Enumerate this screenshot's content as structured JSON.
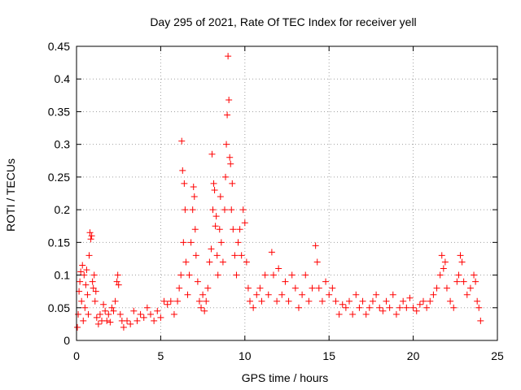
{
  "chart_data": {
    "type": "scatter",
    "title": "Day 295 of 2021, Rate Of TEC Index for receiver yell",
    "xlabel": "GPS time / hours",
    "ylabel": "ROTI / TECUs",
    "xlim": [
      0,
      25
    ],
    "ylim": [
      0,
      0.45
    ],
    "xticks": [
      0,
      5,
      10,
      15,
      20,
      25
    ],
    "xtick_labels": [
      "0",
      "5",
      "10",
      "15",
      "20",
      "25"
    ],
    "yticks": [
      0,
      0.05,
      0.1,
      0.15,
      0.2,
      0.25,
      0.3,
      0.35,
      0.4,
      0.45
    ],
    "ytick_labels": [
      "0",
      "0.05",
      "0.1",
      "0.15",
      "0.2",
      "0.25",
      "0.3",
      "0.35",
      "0.4",
      "0.45"
    ],
    "grid": true,
    "marker": "+",
    "color": "#ff0000",
    "points": [
      [
        0.05,
        0.02
      ],
      [
        0.1,
        0.04
      ],
      [
        0.15,
        0.075
      ],
      [
        0.2,
        0.09
      ],
      [
        0.25,
        0.105
      ],
      [
        0.3,
        0.06
      ],
      [
        0.35,
        0.115
      ],
      [
        0.4,
        0.03
      ],
      [
        0.45,
        0.1
      ],
      [
        0.5,
        0.05
      ],
      [
        0.55,
        0.085
      ],
      [
        0.6,
        0.108
      ],
      [
        0.65,
        0.07
      ],
      [
        0.7,
        0.04
      ],
      [
        0.75,
        0.13
      ],
      [
        0.8,
        0.165
      ],
      [
        0.85,
        0.155
      ],
      [
        0.9,
        0.16
      ],
      [
        0.95,
        0.09
      ],
      [
        1.0,
        0.08
      ],
      [
        1.05,
        0.1
      ],
      [
        1.1,
        0.06
      ],
      [
        1.15,
        0.075
      ],
      [
        1.2,
        0.035
      ],
      [
        1.3,
        0.025
      ],
      [
        1.4,
        0.04
      ],
      [
        1.5,
        0.03
      ],
      [
        1.6,
        0.055
      ],
      [
        1.7,
        0.045
      ],
      [
        1.8,
        0.03
      ],
      [
        1.9,
        0.04
      ],
      [
        2.0,
        0.028
      ],
      [
        2.1,
        0.05
      ],
      [
        2.2,
        0.045
      ],
      [
        2.3,
        0.06
      ],
      [
        2.4,
        0.09
      ],
      [
        2.45,
        0.1
      ],
      [
        2.5,
        0.085
      ],
      [
        2.6,
        0.04
      ],
      [
        2.7,
        0.03
      ],
      [
        2.8,
        0.02
      ],
      [
        3.0,
        0.03
      ],
      [
        3.2,
        0.025
      ],
      [
        3.4,
        0.045
      ],
      [
        3.6,
        0.03
      ],
      [
        3.8,
        0.04
      ],
      [
        4.0,
        0.035
      ],
      [
        4.2,
        0.05
      ],
      [
        4.4,
        0.04
      ],
      [
        4.6,
        0.03
      ],
      [
        4.8,
        0.045
      ],
      [
        5.0,
        0.035
      ],
      [
        5.2,
        0.06
      ],
      [
        5.4,
        0.055
      ],
      [
        5.6,
        0.06
      ],
      [
        5.8,
        0.04
      ],
      [
        6.0,
        0.06
      ],
      [
        6.1,
        0.08
      ],
      [
        6.2,
        0.1
      ],
      [
        6.25,
        0.305
      ],
      [
        6.3,
        0.26
      ],
      [
        6.35,
        0.15
      ],
      [
        6.4,
        0.24
      ],
      [
        6.45,
        0.2
      ],
      [
        6.5,
        0.12
      ],
      [
        6.6,
        0.07
      ],
      [
        6.7,
        0.1
      ],
      [
        6.8,
        0.15
      ],
      [
        6.9,
        0.2
      ],
      [
        6.95,
        0.235
      ],
      [
        7.0,
        0.22
      ],
      [
        7.05,
        0.17
      ],
      [
        7.1,
        0.13
      ],
      [
        7.2,
        0.09
      ],
      [
        7.3,
        0.06
      ],
      [
        7.4,
        0.05
      ],
      [
        7.5,
        0.07
      ],
      [
        7.6,
        0.045
      ],
      [
        7.7,
        0.06
      ],
      [
        7.8,
        0.08
      ],
      [
        7.9,
        0.12
      ],
      [
        8.0,
        0.14
      ],
      [
        8.05,
        0.285
      ],
      [
        8.1,
        0.2
      ],
      [
        8.15,
        0.24
      ],
      [
        8.2,
        0.23
      ],
      [
        8.25,
        0.175
      ],
      [
        8.3,
        0.19
      ],
      [
        8.35,
        0.13
      ],
      [
        8.4,
        0.1
      ],
      [
        8.5,
        0.17
      ],
      [
        8.55,
        0.22
      ],
      [
        8.6,
        0.15
      ],
      [
        8.7,
        0.12
      ],
      [
        8.8,
        0.2
      ],
      [
        8.85,
        0.25
      ],
      [
        8.9,
        0.3
      ],
      [
        8.95,
        0.345
      ],
      [
        9.0,
        0.435
      ],
      [
        9.05,
        0.368
      ],
      [
        9.1,
        0.28
      ],
      [
        9.15,
        0.27
      ],
      [
        9.2,
        0.2
      ],
      [
        9.25,
        0.24
      ],
      [
        9.3,
        0.17
      ],
      [
        9.4,
        0.13
      ],
      [
        9.5,
        0.1
      ],
      [
        9.6,
        0.15
      ],
      [
        9.7,
        0.17
      ],
      [
        9.8,
        0.13
      ],
      [
        9.9,
        0.2
      ],
      [
        10.0,
        0.18
      ],
      [
        10.1,
        0.12
      ],
      [
        10.2,
        0.08
      ],
      [
        10.3,
        0.06
      ],
      [
        10.5,
        0.05
      ],
      [
        10.7,
        0.07
      ],
      [
        10.9,
        0.08
      ],
      [
        11.0,
        0.06
      ],
      [
        11.2,
        0.1
      ],
      [
        11.4,
        0.07
      ],
      [
        11.6,
        0.135
      ],
      [
        11.7,
        0.1
      ],
      [
        11.9,
        0.06
      ],
      [
        12.0,
        0.11
      ],
      [
        12.2,
        0.07
      ],
      [
        12.4,
        0.09
      ],
      [
        12.6,
        0.06
      ],
      [
        12.8,
        0.1
      ],
      [
        13.0,
        0.08
      ],
      [
        13.2,
        0.05
      ],
      [
        13.4,
        0.07
      ],
      [
        13.6,
        0.1
      ],
      [
        13.8,
        0.06
      ],
      [
        14.0,
        0.08
      ],
      [
        14.2,
        0.145
      ],
      [
        14.3,
        0.12
      ],
      [
        14.4,
        0.08
      ],
      [
        14.6,
        0.06
      ],
      [
        14.8,
        0.09
      ],
      [
        15.0,
        0.07
      ],
      [
        15.2,
        0.08
      ],
      [
        15.4,
        0.06
      ],
      [
        15.6,
        0.04
      ],
      [
        15.8,
        0.055
      ],
      [
        16.0,
        0.05
      ],
      [
        16.2,
        0.06
      ],
      [
        16.4,
        0.04
      ],
      [
        16.6,
        0.07
      ],
      [
        16.8,
        0.05
      ],
      [
        17.0,
        0.06
      ],
      [
        17.2,
        0.04
      ],
      [
        17.4,
        0.05
      ],
      [
        17.6,
        0.06
      ],
      [
        17.8,
        0.07
      ],
      [
        18.0,
        0.05
      ],
      [
        18.2,
        0.045
      ],
      [
        18.4,
        0.06
      ],
      [
        18.6,
        0.05
      ],
      [
        18.8,
        0.07
      ],
      [
        19.0,
        0.04
      ],
      [
        19.2,
        0.05
      ],
      [
        19.4,
        0.06
      ],
      [
        19.6,
        0.05
      ],
      [
        19.8,
        0.065
      ],
      [
        20.0,
        0.05
      ],
      [
        20.2,
        0.045
      ],
      [
        20.4,
        0.055
      ],
      [
        20.6,
        0.06
      ],
      [
        20.8,
        0.05
      ],
      [
        21.0,
        0.06
      ],
      [
        21.2,
        0.07
      ],
      [
        21.4,
        0.08
      ],
      [
        21.6,
        0.1
      ],
      [
        21.7,
        0.13
      ],
      [
        21.8,
        0.11
      ],
      [
        21.9,
        0.12
      ],
      [
        22.0,
        0.08
      ],
      [
        22.2,
        0.06
      ],
      [
        22.4,
        0.05
      ],
      [
        22.6,
        0.09
      ],
      [
        22.7,
        0.1
      ],
      [
        22.8,
        0.13
      ],
      [
        22.9,
        0.12
      ],
      [
        23.0,
        0.09
      ],
      [
        23.2,
        0.07
      ],
      [
        23.4,
        0.08
      ],
      [
        23.6,
        0.1
      ],
      [
        23.7,
        0.09
      ],
      [
        23.8,
        0.06
      ],
      [
        23.9,
        0.05
      ],
      [
        24.0,
        0.03
      ]
    ]
  }
}
